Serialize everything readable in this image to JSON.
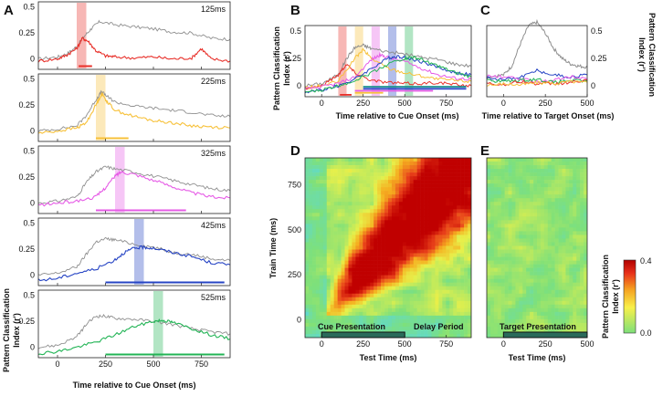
{
  "panel_labels": {
    "a": "A",
    "b": "B",
    "c": "C",
    "d": "D",
    "e": "E"
  },
  "colors": {
    "gray": "#8f8f8f",
    "red": "#e8302a",
    "yellow": "#f7c13a",
    "magenta": "#e65be6",
    "blue": "#2644c4",
    "green": "#22b455",
    "teal": "#1b8f8f",
    "cyan": "#2fc0d0"
  },
  "labels": {
    "cue_x": "Time relative to Cue Onset (ms)",
    "target_x": "Time relative to Target Onset (ms)",
    "pci_line1": "Pattern Classification",
    "pci_line2": "Index (r')",
    "test_x": "Test Time (ms)",
    "train_y": "Train Time (ms)",
    "cue_presentation": "Cue Presentation",
    "delay_period": "Delay Period",
    "target_presentation": "Target Presentation"
  },
  "chart_data": [
    {
      "type": "line",
      "panel": "A",
      "x_range": [
        -100,
        900
      ],
      "y_range": [
        -0.1,
        0.55
      ],
      "x_ticks": [
        "0",
        "250",
        "500",
        "750"
      ],
      "y_ticks": [
        "0",
        "0.25",
        "0.5"
      ],
      "subplots": [
        {
          "label": "125ms",
          "color": "red",
          "window": [
            100,
            150
          ],
          "bar": [
            110,
            180
          ],
          "series": [
            {
              "color": "gray",
              "x": [
                -100,
                0,
                50,
                100,
                140,
                180,
                220,
                300,
                400,
                500,
                600,
                700,
                800,
                900
              ],
              "y": [
                0.0,
                0.02,
                0.05,
                0.12,
                0.22,
                0.3,
                0.36,
                0.33,
                0.31,
                0.29,
                0.26,
                0.25,
                0.2,
                0.19
              ]
            },
            {
              "color": "red",
              "x": [
                -100,
                0,
                50,
                100,
                130,
                160,
                200,
                250,
                300,
                400,
                500,
                600,
                700,
                750,
                800,
                900
              ],
              "y": [
                -0.02,
                0.0,
                0.04,
                0.1,
                0.2,
                0.17,
                0.08,
                0.03,
                0.02,
                0.01,
                0.02,
                0.0,
                0.01,
                0.1,
                0.0,
                -0.02
              ]
            }
          ]
        },
        {
          "label": "225ms",
          "color": "yellow",
          "window": [
            200,
            250
          ],
          "bar": [
            200,
            370
          ],
          "series": [
            {
              "color": "gray",
              "x": [
                -100,
                0,
                100,
                150,
                200,
                230,
                260,
                300,
                400,
                500,
                600,
                700,
                800,
                900
              ],
              "y": [
                0.0,
                0.02,
                0.05,
                0.15,
                0.3,
                0.38,
                0.33,
                0.28,
                0.24,
                0.22,
                0.2,
                0.18,
                0.15,
                0.14
              ]
            },
            {
              "color": "yellow",
              "x": [
                -100,
                0,
                100,
                150,
                200,
                230,
                260,
                300,
                400,
                500,
                600,
                700,
                800,
                900
              ],
              "y": [
                -0.02,
                0.0,
                0.03,
                0.08,
                0.25,
                0.36,
                0.28,
                0.2,
                0.14,
                0.1,
                0.08,
                0.05,
                0.04,
                0.03
              ]
            }
          ]
        },
        {
          "label": "325ms",
          "color": "magenta",
          "window": [
            300,
            350
          ],
          "bar": [
            200,
            670
          ],
          "series": [
            {
              "color": "gray",
              "x": [
                -100,
                0,
                100,
                150,
                200,
                250,
                300,
                400,
                500,
                600,
                700,
                800,
                900
              ],
              "y": [
                0.0,
                0.02,
                0.06,
                0.2,
                0.3,
                0.35,
                0.33,
                0.3,
                0.26,
                0.22,
                0.18,
                0.14,
                0.12
              ]
            },
            {
              "color": "magenta",
              "x": [
                -100,
                0,
                100,
                200,
                250,
                300,
                330,
                400,
                500,
                600,
                700,
                800,
                900
              ],
              "y": [
                -0.02,
                0.0,
                0.02,
                0.06,
                0.15,
                0.26,
                0.3,
                0.28,
                0.22,
                0.16,
                0.1,
                0.06,
                0.05
              ]
            }
          ]
        },
        {
          "label": "425ms",
          "color": "blue",
          "window": [
            400,
            450
          ],
          "bar": [
            250,
            870
          ],
          "series": [
            {
              "color": "gray",
              "x": [
                -100,
                0,
                100,
                150,
                200,
                250,
                300,
                400,
                500,
                600,
                700,
                800,
                900
              ],
              "y": [
                0.0,
                0.02,
                0.08,
                0.2,
                0.32,
                0.35,
                0.34,
                0.3,
                0.27,
                0.22,
                0.2,
                0.16,
                0.14
              ]
            },
            {
              "color": "blue",
              "x": [
                -100,
                0,
                100,
                200,
                300,
                350,
                400,
                450,
                500,
                600,
                700,
                800,
                900
              ],
              "y": [
                -0.05,
                -0.03,
                0.02,
                0.06,
                0.15,
                0.22,
                0.26,
                0.27,
                0.26,
                0.22,
                0.18,
                0.12,
                0.1
              ]
            }
          ]
        },
        {
          "label": "525ms",
          "color": "green",
          "window": [
            500,
            550
          ],
          "bar": [
            250,
            870
          ],
          "series": [
            {
              "color": "gray",
              "x": [
                -100,
                0,
                100,
                150,
                200,
                250,
                300,
                400,
                500,
                600,
                700,
                800,
                900
              ],
              "y": [
                0.0,
                0.02,
                0.1,
                0.22,
                0.3,
                0.3,
                0.28,
                0.27,
                0.25,
                0.22,
                0.18,
                0.15,
                0.13
              ]
            },
            {
              "color": "green",
              "x": [
                -100,
                0,
                100,
                200,
                300,
                400,
                500,
                550,
                600,
                700,
                800,
                900
              ],
              "y": [
                -0.06,
                -0.04,
                0.0,
                0.05,
                0.12,
                0.2,
                0.25,
                0.26,
                0.24,
                0.18,
                0.12,
                0.08
              ]
            }
          ]
        }
      ]
    },
    {
      "type": "line",
      "panel": "B",
      "x_range": [
        -100,
        900
      ],
      "y_range": [
        -0.1,
        0.55
      ],
      "x_ticks": [
        "0",
        "250",
        "500",
        "750"
      ],
      "y_ticks": [
        "0",
        "0.25",
        "0.5"
      ],
      "windows": [
        {
          "color": "red",
          "x": [
            100,
            150
          ]
        },
        {
          "color": "yellow",
          "x": [
            200,
            250
          ]
        },
        {
          "color": "magenta",
          "x": [
            300,
            350
          ]
        },
        {
          "color": "blue",
          "x": [
            400,
            450
          ]
        },
        {
          "color": "green",
          "x": [
            500,
            550
          ]
        }
      ],
      "bars": [
        {
          "color": "red",
          "x": [
            110,
            180
          ]
        },
        {
          "color": "yellow",
          "x": [
            200,
            370
          ]
        },
        {
          "color": "magenta",
          "x": [
            200,
            670
          ]
        },
        {
          "color": "blue",
          "x": [
            250,
            870
          ]
        },
        {
          "color": "teal",
          "x": [
            250,
            870
          ]
        }
      ],
      "series": [
        {
          "color": "gray",
          "x": [
            -100,
            0,
            100,
            150,
            200,
            250,
            300,
            400,
            500,
            600,
            700,
            800,
            900
          ],
          "y": [
            0.0,
            0.02,
            0.1,
            0.25,
            0.35,
            0.37,
            0.34,
            0.31,
            0.29,
            0.26,
            0.24,
            0.2,
            0.18
          ]
        },
        {
          "color": "red",
          "x": [
            -100,
            0,
            100,
            150,
            200,
            300,
            400,
            500,
            600,
            700,
            800,
            900
          ],
          "y": [
            -0.02,
            0.0,
            0.1,
            0.2,
            0.12,
            0.05,
            0.03,
            0.02,
            0.02,
            0.03,
            0.01,
            0.0
          ]
        },
        {
          "color": "yellow",
          "x": [
            -100,
            0,
            100,
            200,
            250,
            300,
            400,
            500,
            600,
            700,
            800,
            900
          ],
          "y": [
            -0.02,
            0.0,
            0.04,
            0.25,
            0.33,
            0.25,
            0.16,
            0.12,
            0.09,
            0.06,
            0.05,
            0.04
          ]
        },
        {
          "color": "magenta",
          "x": [
            -100,
            0,
            100,
            200,
            300,
            350,
            400,
            500,
            600,
            700,
            800,
            900
          ],
          "y": [
            -0.03,
            -0.01,
            0.02,
            0.08,
            0.24,
            0.28,
            0.26,
            0.22,
            0.16,
            0.1,
            0.07,
            0.06
          ]
        },
        {
          "color": "blue",
          "x": [
            -100,
            0,
            100,
            200,
            300,
            400,
            450,
            500,
            600,
            700,
            800,
            900
          ],
          "y": [
            -0.06,
            -0.04,
            0.0,
            0.06,
            0.16,
            0.25,
            0.27,
            0.26,
            0.22,
            0.17,
            0.12,
            0.1
          ]
        },
        {
          "color": "green",
          "x": [
            -100,
            0,
            100,
            200,
            300,
            400,
            500,
            550,
            600,
            700,
            800,
            900
          ],
          "y": [
            -0.06,
            -0.04,
            0.0,
            0.05,
            0.12,
            0.2,
            0.25,
            0.26,
            0.24,
            0.18,
            0.12,
            0.08
          ]
        }
      ]
    },
    {
      "type": "line",
      "panel": "C",
      "x_range": [
        -100,
        500
      ],
      "y_range": [
        -0.1,
        0.55
      ],
      "x_ticks": [
        "0",
        "250",
        "500"
      ],
      "y_ticks": [
        "0",
        "0.25",
        "0.5"
      ],
      "series": [
        {
          "color": "gray",
          "x": [
            -100,
            0,
            50,
            100,
            150,
            200,
            250,
            300,
            350,
            400,
            450,
            500
          ],
          "y": [
            0.08,
            0.1,
            0.18,
            0.38,
            0.55,
            0.58,
            0.48,
            0.34,
            0.25,
            0.2,
            0.18,
            0.17
          ]
        },
        {
          "color": "blue",
          "x": [
            -100,
            0,
            100,
            200,
            300,
            400,
            500
          ],
          "y": [
            0.07,
            0.06,
            0.08,
            0.14,
            0.1,
            0.08,
            0.1
          ]
        },
        {
          "color": "magenta",
          "x": [
            -100,
            0,
            100,
            200,
            300,
            400,
            500
          ],
          "y": [
            0.09,
            0.08,
            0.06,
            0.04,
            0.05,
            0.08,
            0.06
          ]
        },
        {
          "color": "green",
          "x": [
            -100,
            0,
            100,
            200,
            300,
            400,
            500
          ],
          "y": [
            0.05,
            0.04,
            0.05,
            0.06,
            0.03,
            0.05,
            0.04
          ]
        },
        {
          "color": "red",
          "x": [
            -100,
            0,
            100,
            200,
            300,
            400,
            500
          ],
          "y": [
            0.02,
            0.01,
            0.04,
            0.02,
            0.02,
            0.03,
            0.05
          ]
        },
        {
          "color": "yellow",
          "x": [
            -100,
            0,
            100,
            200,
            300,
            400,
            500
          ],
          "y": [
            0.0,
            0.02,
            0.01,
            0.03,
            0.02,
            0.04,
            0.03
          ]
        }
      ]
    },
    {
      "type": "heatmap",
      "panel": "D",
      "x_range": [
        -100,
        900
      ],
      "y_range": [
        -100,
        900
      ],
      "x_ticks": [
        "0",
        "250",
        "500",
        "750"
      ],
      "y_ticks": [
        "0",
        "250",
        "500",
        "750"
      ],
      "cue_window": [
        0,
        500
      ]
    },
    {
      "type": "heatmap",
      "panel": "E",
      "x_range": [
        -100,
        500
      ],
      "y_range": [
        -100,
        900
      ],
      "x_ticks": [
        "0",
        "250",
        "500"
      ],
      "target_window": [
        0,
        500
      ]
    },
    {
      "type": "colorbar",
      "range": [
        0,
        0.4
      ],
      "tick_labels": [
        "0.4",
        "0.0"
      ],
      "colors": [
        "#7ee07a",
        "#f8f04a",
        "#f5a020",
        "#e8301a",
        "#b00000"
      ]
    }
  ]
}
